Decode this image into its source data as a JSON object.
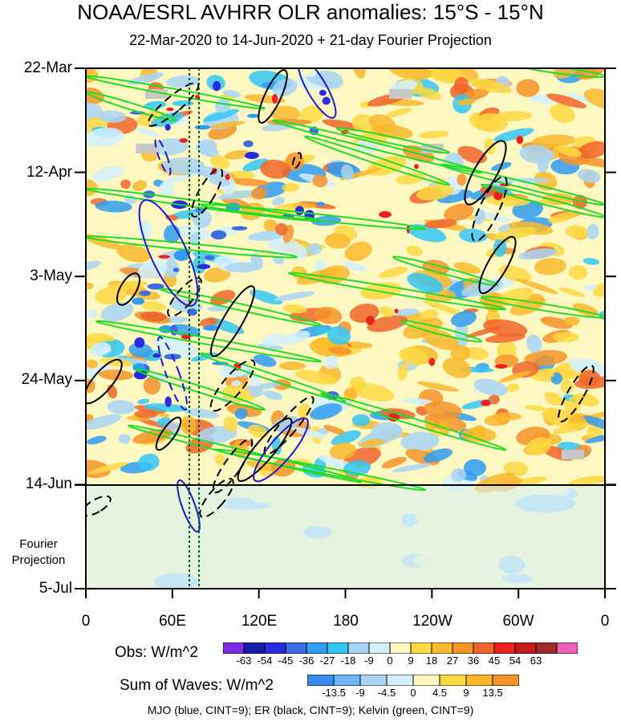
{
  "title": "NOAA/ESRL AVHRR OLR anomalies: 15°S - 15°N",
  "subtitle": "22-Mar-2020 to 14-Jun-2020 + 21-day Fourier Projection",
  "footer": "MJO (blue, CINT=9); ER (black, CINT=9); Kelvin (green, CINT=9)",
  "projection_label": [
    "Fourier",
    "Projection"
  ],
  "colors": {
    "obs": [
      "#7b2be0",
      "#1a1aa8",
      "#2a2ae0",
      "#3c6de0",
      "#2f9cf2",
      "#33c7f5",
      "#a9d5f5",
      "#d4f0fb",
      "#fdf7c2",
      "#fbd842",
      "#f9b92b",
      "#f5932a",
      "#f0652a",
      "#ef2020",
      "#c61a1a",
      "#a02a2a",
      "#f060c0"
    ],
    "sum_of_waves": [
      "#3a8bf0",
      "#6fb4f5",
      "#a9d5f5",
      "#d4f0fb",
      "#fdf7c2",
      "#fbd842",
      "#f9b92b",
      "#f5932a"
    ],
    "mjo": "#1a1ad0",
    "er": "#000000",
    "kelvin": "#22dd22"
  },
  "chart_data": {
    "type": "heatmap",
    "title": "NOAA/ESRL AVHRR OLR anomalies: 15°S - 15°N",
    "subtitle": "22-Mar-2020 to 14-Jun-2020 + 21-day Fourier Projection",
    "x_axis": {
      "ticks": [
        "0",
        "60E",
        "120E",
        "180",
        "120W",
        "60W",
        "0"
      ],
      "values": [
        0,
        60,
        120,
        180,
        240,
        300,
        360
      ],
      "range": [
        0,
        360
      ]
    },
    "y_axis": {
      "ticks": [
        "22-Mar",
        "12-Apr",
        "3-May",
        "24-May",
        "14-Jun",
        "5-Jul"
      ],
      "range": [
        "22-Mar-2020",
        "5-Jul-2020"
      ],
      "direction": "time increases downward"
    },
    "observation_end": "14-Jun",
    "obs_colorbar": {
      "label": "Obs: W/m^2",
      "levels": [
        -63,
        -54,
        -45,
        -36,
        -27,
        -18,
        -9,
        0,
        9,
        18,
        27,
        36,
        45,
        54,
        63
      ]
    },
    "sum_colorbar": {
      "label": "Sum of Waves: W/m^2",
      "levels": [
        -13.5,
        -9,
        -4.5,
        0,
        4.5,
        9,
        13.5
      ]
    },
    "contours": [
      "MJO (blue, CINT=9)",
      "ER (black, CINT=9)",
      "Kelvin (green, CINT=9)"
    ],
    "reference_lines": {
      "style": "dotted dark green vertical",
      "longitudes": [
        73,
        80
      ]
    }
  }
}
